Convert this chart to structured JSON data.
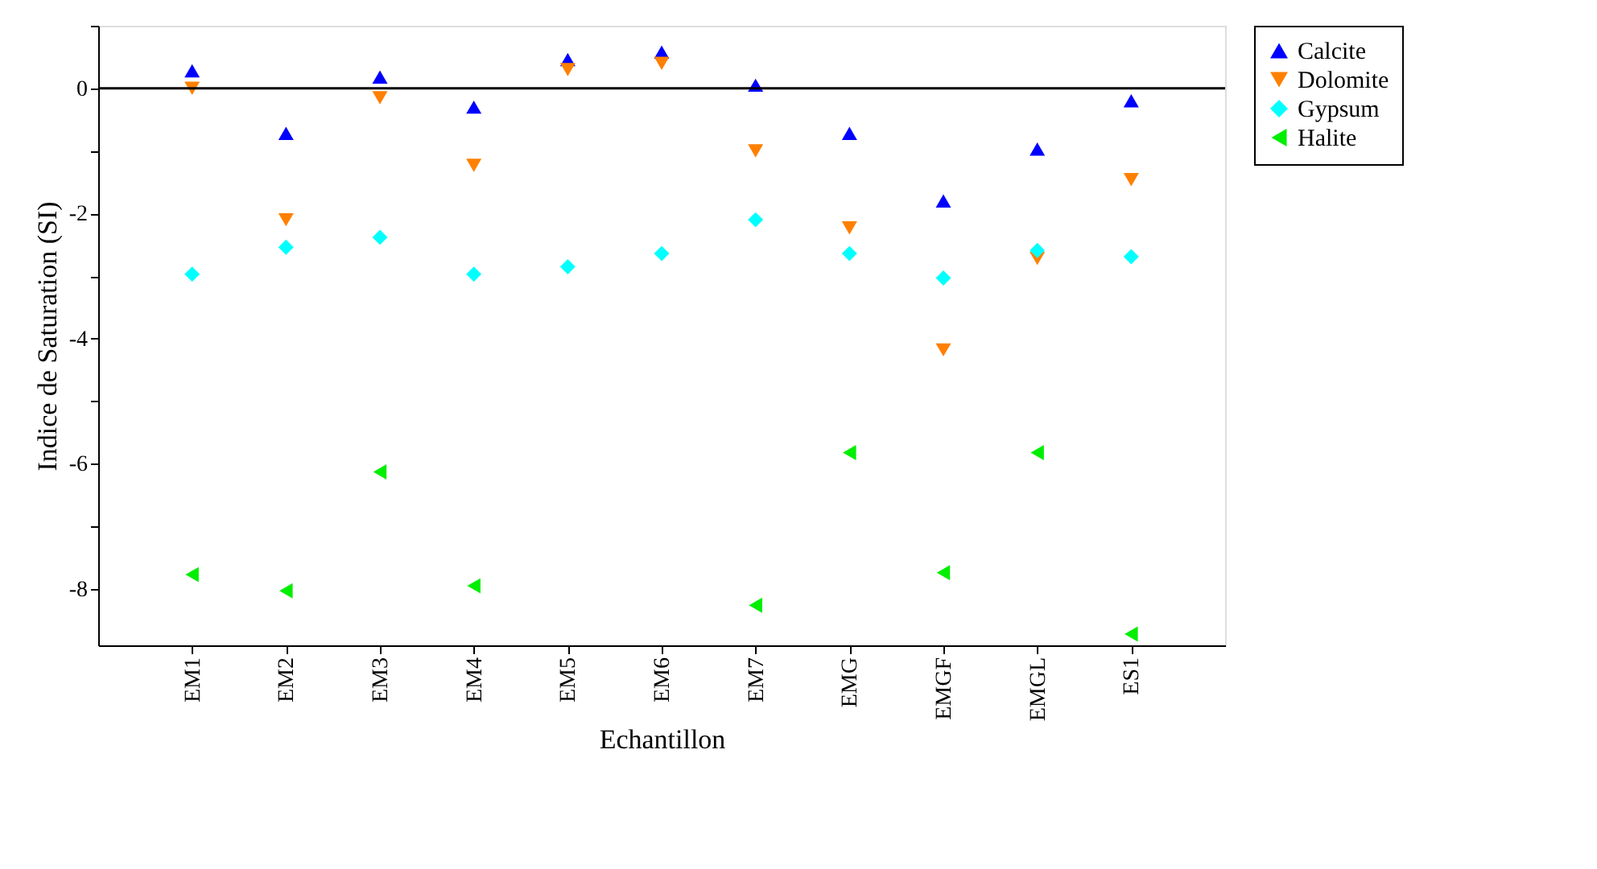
{
  "chart_data": {
    "type": "scatter",
    "xlabel": "Echantillon",
    "ylabel": "Indice de Saturation (SI)",
    "categories": [
      "EM1",
      "EM2",
      "EM3",
      "EM4",
      "EM5",
      "EM6",
      "EM7",
      "EMG",
      "EMGF",
      "EMGL",
      "ES1"
    ],
    "series": [
      {
        "name": "Calcite",
        "color": "#0000ff",
        "marker": "triangle",
        "values": [
          0.28,
          -0.72,
          0.18,
          -0.3,
          0.46,
          0.58,
          0.05,
          -0.72,
          -1.8,
          -0.97,
          -0.2
        ]
      },
      {
        "name": "Dolomite",
        "color": "#ff8000",
        "marker": "triangle",
        "values": [
          0.0,
          -2.1,
          -0.15,
          -1.23,
          0.3,
          0.4,
          -1.0,
          -2.23,
          -4.18,
          -2.72,
          -1.46
        ]
      },
      {
        "name": "Gypsum",
        "color": "#00ffff",
        "marker": "diamond",
        "values": [
          -2.97,
          -2.54,
          -2.38,
          -2.97,
          -2.85,
          -2.64,
          -2.1,
          -2.64,
          -3.03,
          -2.59,
          -2.69
        ]
      },
      {
        "name": "Halite",
        "color": "#00ee00",
        "marker": "triangle",
        "values": [
          -7.77,
          -8.03,
          -6.13,
          -7.95,
          null,
          null,
          -8.26,
          -5.82,
          -7.74,
          -5.82,
          -8.72
        ]
      }
    ],
    "ylim": [
      -8.9,
      1
    ],
    "yticks": [
      {
        "value": 1,
        "label": null
      },
      0,
      {
        "value": -1,
        "label": null
      },
      -2,
      {
        "value": -3,
        "label": null
      },
      -4,
      {
        "value": -5,
        "label": null
      },
      -6,
      {
        "value": -7,
        "label": null
      },
      -8
    ],
    "ref_lines": [
      {
        "axis": "y",
        "value": 0,
        "color": "#000000"
      }
    ],
    "grid": false,
    "legend": "right"
  }
}
